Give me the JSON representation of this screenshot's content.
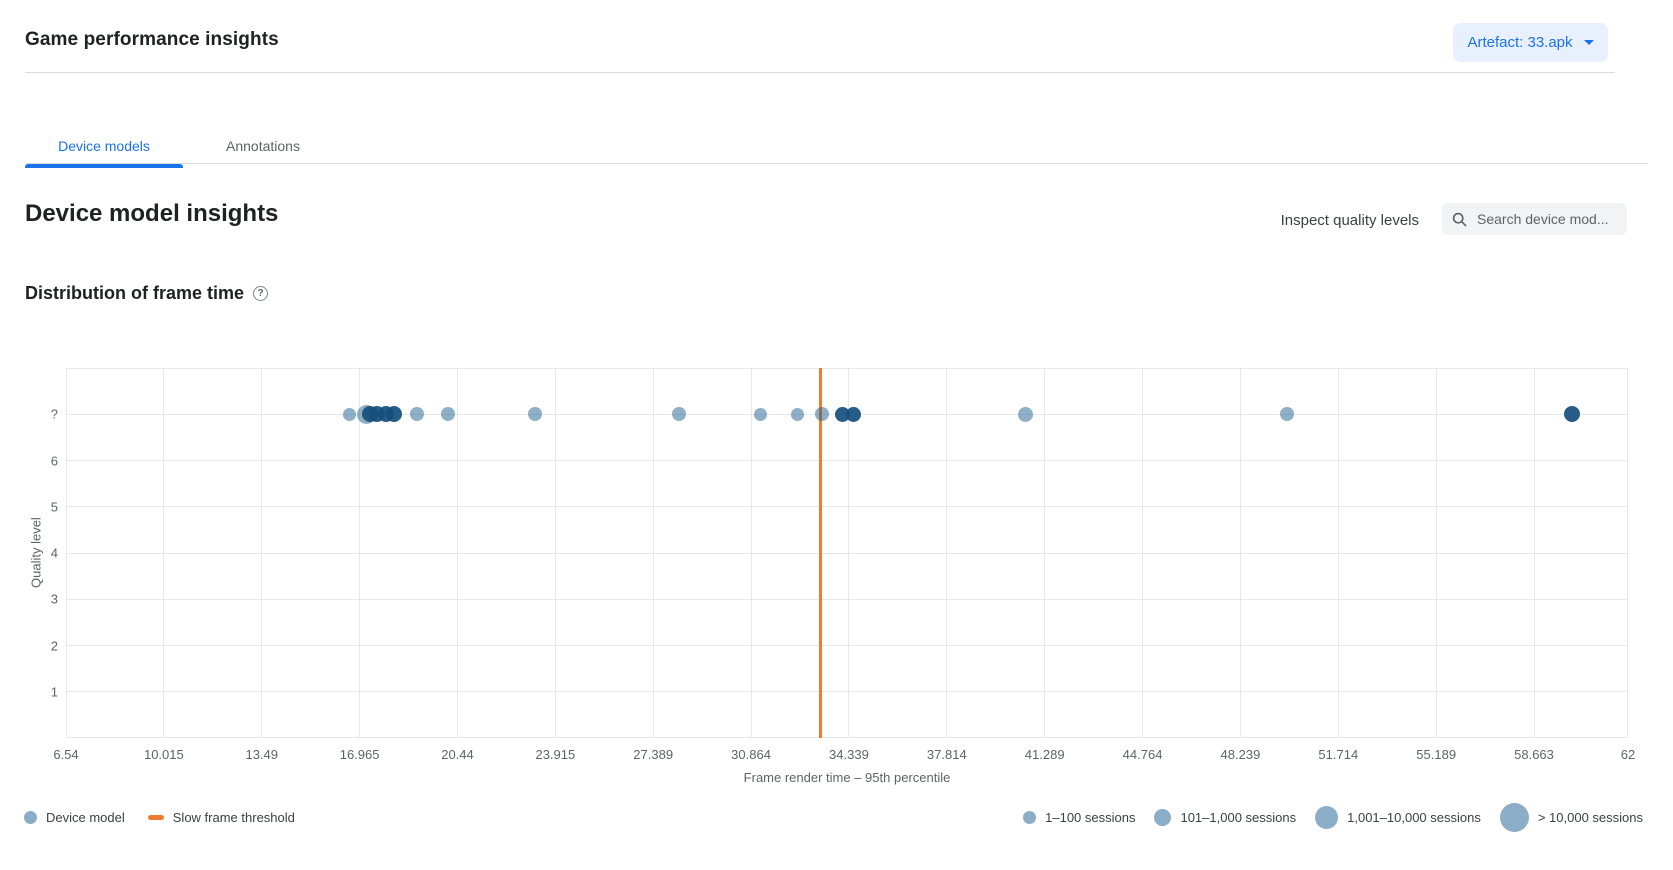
{
  "header": {
    "title": "Game performance insights",
    "artefact_button_label": "Artefact: 33.apk"
  },
  "tabs": [
    {
      "label": "Device models",
      "active": true
    },
    {
      "label": "Annotations",
      "active": false
    }
  ],
  "section": {
    "title": "Device model insights",
    "inspect_button_label": "Inspect quality levels",
    "search_placeholder": "Search device mod...",
    "search_icon": "magnifier"
  },
  "chart_data": {
    "type": "scatter",
    "title": "Distribution of frame time",
    "xlabel": "Frame render time – 95th percentile",
    "ylabel": "Quality level",
    "xlim": [
      6.54,
      62
    ],
    "x_ticks": [
      6.54,
      10.015,
      13.49,
      16.965,
      20.44,
      23.915,
      27.389,
      30.864,
      34.339,
      37.814,
      41.289,
      44.764,
      48.239,
      51.714,
      55.189,
      58.663,
      62
    ],
    "y_ticks": [
      "?",
      "6",
      "5",
      "4",
      "3",
      "2",
      "1"
    ],
    "grid": true,
    "legend_position": "bottom",
    "threshold": {
      "label": "Slow frame threshold",
      "x": 33.33,
      "color": "#ee7c2e"
    },
    "point_colors": {
      "light": "rgba(32,95,141,0.5)",
      "dark": "rgba(21,80,124,0.93)"
    },
    "points": [
      {
        "x": 16.6,
        "y": "?",
        "sessions": "1–100",
        "d": 13,
        "shade": "light"
      },
      {
        "x": 17.2,
        "y": "?",
        "sessions": "1,001–10,000",
        "d": 19,
        "shade": "light"
      },
      {
        "x": 17.35,
        "y": "?",
        "sessions": "101–1,000",
        "d": 16,
        "shade": "dark"
      },
      {
        "x": 17.6,
        "y": "?",
        "sessions": "101–1,000",
        "d": 16,
        "shade": "dark"
      },
      {
        "x": 17.9,
        "y": "?",
        "sessions": "101–1,000",
        "d": 16,
        "shade": "dark"
      },
      {
        "x": 18.2,
        "y": "?",
        "sessions": "101–1,000",
        "d": 16,
        "shade": "dark"
      },
      {
        "x": 19.0,
        "y": "?",
        "sessions": "101–1,000",
        "d": 14,
        "shade": "light"
      },
      {
        "x": 20.1,
        "y": "?",
        "sessions": "101–1,000",
        "d": 14,
        "shade": "light"
      },
      {
        "x": 23.2,
        "y": "?",
        "sessions": "101–1,000",
        "d": 14,
        "shade": "light"
      },
      {
        "x": 28.3,
        "y": "?",
        "sessions": "101–1,000",
        "d": 14,
        "shade": "light"
      },
      {
        "x": 31.2,
        "y": "?",
        "sessions": "1–100",
        "d": 13,
        "shade": "light"
      },
      {
        "x": 32.5,
        "y": "?",
        "sessions": "1–100",
        "d": 13,
        "shade": "light"
      },
      {
        "x": 33.4,
        "y": "?",
        "sessions": "101–1,000",
        "d": 14,
        "shade": "light"
      },
      {
        "x": 34.1,
        "y": "?",
        "sessions": "101–1,000",
        "d": 15,
        "shade": "dark"
      },
      {
        "x": 34.5,
        "y": "?",
        "sessions": "101–1,000",
        "d": 15,
        "shade": "dark"
      },
      {
        "x": 40.6,
        "y": "?",
        "sessions": "101–1,000",
        "d": 15,
        "shade": "light"
      },
      {
        "x": 49.9,
        "y": "?",
        "sessions": "101–1,000",
        "d": 14,
        "shade": "light"
      },
      {
        "x": 60.0,
        "y": "?",
        "sessions": "101–1,000",
        "d": 16,
        "shade": "dark"
      }
    ]
  },
  "legend": {
    "series": [
      {
        "marker": "dot",
        "label": "Device model"
      },
      {
        "marker": "line",
        "label": "Slow frame threshold"
      }
    ],
    "sizes": [
      {
        "label": "1–100 sessions",
        "d": 13
      },
      {
        "label": "101–1,000 sessions",
        "d": 17
      },
      {
        "label": "1,001–10,000 sessions",
        "d": 23
      },
      {
        "label": "> 10,000 sessions",
        "d": 29
      }
    ]
  },
  "colors": {
    "accent_blue": "#1a73e8",
    "button_bg": "#e8f0fe",
    "legend_dot_blue": "#8cadc7",
    "threshold_orange": "#ee7c2e",
    "text_primary": "#202124",
    "text_secondary": "#5f6368",
    "grid": "#e6e8eb"
  }
}
